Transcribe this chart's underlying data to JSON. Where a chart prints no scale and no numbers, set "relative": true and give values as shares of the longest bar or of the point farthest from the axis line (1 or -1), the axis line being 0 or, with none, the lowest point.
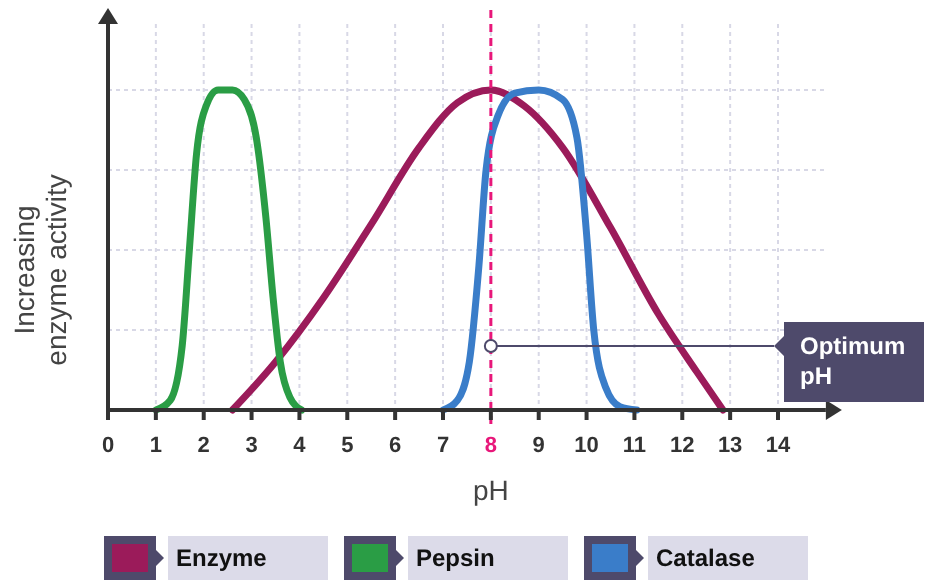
{
  "chart_data": {
    "type": "line",
    "relative": true,
    "xlabel": "pH",
    "ylabel": "Increasing enzyme activity",
    "xlim": [
      0,
      15
    ],
    "xticks": [
      0,
      1,
      2,
      3,
      4,
      5,
      6,
      7,
      8,
      9,
      10,
      11,
      12,
      13,
      14
    ],
    "grid": true,
    "legend": "bottom",
    "marker": "none",
    "line_style": "solid",
    "series": [
      {
        "name": "Enzyme",
        "color": "#9b1b5a",
        "x": [
          2.6,
          3.5,
          4.5,
          5.5,
          6.5,
          7.3,
          8,
          8.7,
          9.5,
          10.5,
          11.5,
          12.3,
          12.85
        ],
        "values": [
          0,
          0.15,
          0.35,
          0.58,
          0.82,
          0.96,
          1,
          0.95,
          0.82,
          0.57,
          0.3,
          0.12,
          0
        ]
      },
      {
        "name": "Pepsin",
        "color": "#2a9d45",
        "x": [
          1,
          1.3,
          1.55,
          1.7,
          1.85,
          2.05,
          2.3,
          2.6,
          2.85,
          3.1,
          3.3,
          3.45,
          3.6,
          3.8,
          4.05
        ],
        "values": [
          0,
          0.03,
          0.2,
          0.5,
          0.8,
          0.95,
          1,
          1,
          0.97,
          0.85,
          0.6,
          0.35,
          0.15,
          0.04,
          0
        ]
      },
      {
        "name": "Catalase",
        "color": "#3a7dc9",
        "x": [
          7,
          7.3,
          7.55,
          7.75,
          7.9,
          8.15,
          8.5,
          9,
          9.5,
          9.8,
          10,
          10.15,
          10.4,
          10.7,
          11.05
        ],
        "values": [
          0,
          0.03,
          0.15,
          0.45,
          0.75,
          0.92,
          0.99,
          1,
          0.97,
          0.85,
          0.55,
          0.25,
          0.07,
          0.01,
          0
        ]
      }
    ],
    "ref_lines": [
      {
        "axis": "x",
        "value": 8,
        "color": "#e8177a",
        "line_style": "dashed"
      }
    ],
    "annotations": [
      {
        "text": "Optimum pH",
        "x": 8,
        "y": 0.2
      }
    ]
  }
}
